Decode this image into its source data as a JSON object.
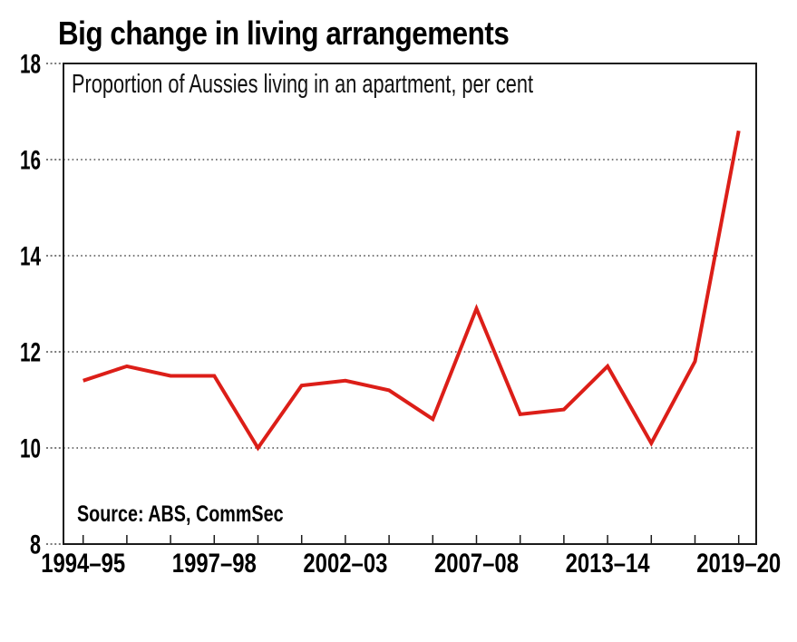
{
  "title": "Big change in living arrangements",
  "subtitle": "Proportion of Aussies living in an apartment, per cent",
  "source_note": "Source: ABS, CommSec",
  "colors": {
    "background": "#ffffff",
    "line": "#dc1e18",
    "axis": "#1a1a1a",
    "grid": "#2b2b2b",
    "text": "#000000"
  },
  "chart_data": {
    "type": "line",
    "title": "Big change in living arrangements",
    "subtitle": "Proportion of Aussies living in an apartment, per cent",
    "source": "Source: ABS, CommSec",
    "ylabel": "per cent",
    "ylim": [
      8,
      18
    ],
    "y_ticks": [
      8,
      10,
      12,
      14,
      16,
      18
    ],
    "grid": "horizontal dotted lines at 10, 12, 14, 16; solid box frame",
    "legend_position": "none",
    "values": [
      11.4,
      11.7,
      11.5,
      11.5,
      10.0,
      11.3,
      11.4,
      11.2,
      10.6,
      12.9,
      10.7,
      10.8,
      11.7,
      10.1,
      11.8,
      16.6
    ],
    "x_tick_labels": [
      {
        "index": 0,
        "label": "1994–95"
      },
      {
        "index": 3,
        "label": "1997–98"
      },
      {
        "index": 6,
        "label": "2002–03"
      },
      {
        "index": 9,
        "label": "2007–08"
      },
      {
        "index": 12,
        "label": "2013–14"
      },
      {
        "index": 15,
        "label": "2019–20"
      }
    ],
    "series_color": "#dc1e18"
  }
}
